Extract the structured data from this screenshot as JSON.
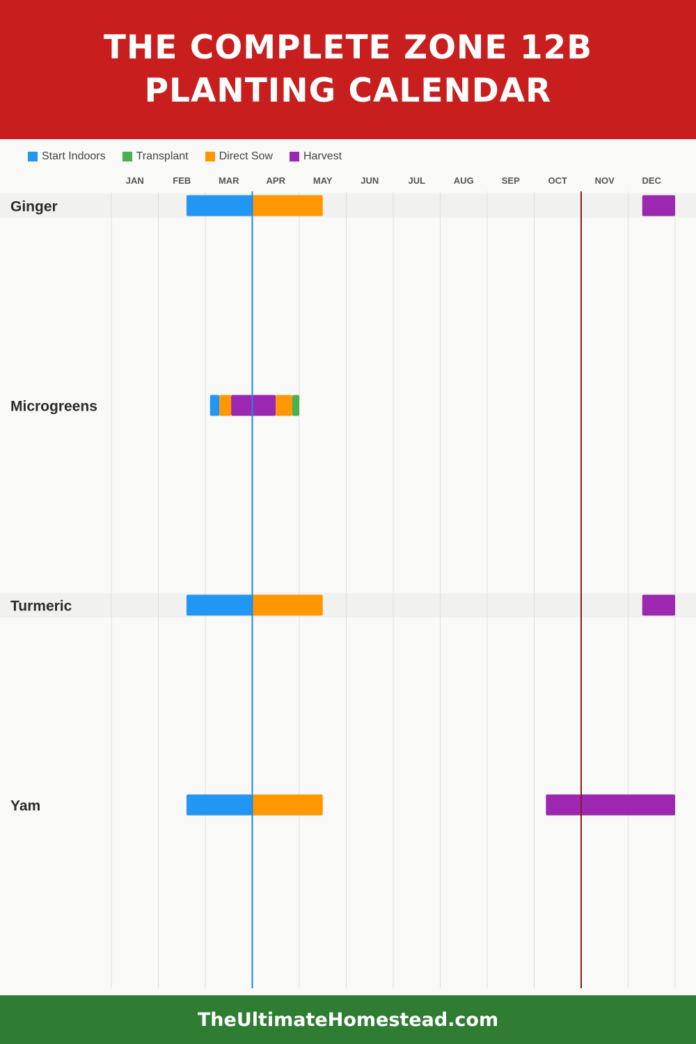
{
  "title": {
    "line1": "THE COMPLETE ZONE 12B",
    "line2": "PLANTING CALENDAR"
  },
  "legend": [
    {
      "label": "Start Indoors",
      "color": "#2196f3"
    },
    {
      "label": "Transplant",
      "color": "#4caf50"
    },
    {
      "label": "Direct Sow",
      "color": "#ff9800"
    },
    {
      "label": "Harvest",
      "color": "#9c27b0"
    }
  ],
  "footer": {
    "text": "TheUltimateHomestead.com"
  },
  "chart_data": {
    "type": "gantt",
    "months": [
      "JAN",
      "FEB",
      "MAR",
      "APR",
      "MAY",
      "JUN",
      "JUL",
      "AUG",
      "SEP",
      "OCT",
      "NOV",
      "DEC"
    ],
    "markers": [
      {
        "month_pos": 3.0,
        "color": "#1e88e5"
      },
      {
        "month_pos": 10.0,
        "color": "#8b1a1a"
      }
    ],
    "crops": [
      {
        "name": "Ginger",
        "tasks": [
          {
            "type": "Start Indoors",
            "start": 1.6,
            "end": 3.0
          },
          {
            "type": "Direct Sow",
            "start": 3.0,
            "end": 4.5
          },
          {
            "type": "Harvest",
            "start": 11.3,
            "end": 12.0
          }
        ]
      },
      {
        "name": "Microgreens",
        "tasks": [
          {
            "type": "Start Indoors",
            "start": 2.1,
            "end": 2.3
          },
          {
            "type": "Direct Sow",
            "start": 2.3,
            "end": 2.55
          },
          {
            "type": "Harvest",
            "start": 2.55,
            "end": 3.5
          },
          {
            "type": "Direct Sow",
            "start": 3.5,
            "end": 3.85
          },
          {
            "type": "Transplant",
            "start": 3.85,
            "end": 4.0
          }
        ]
      },
      {
        "name": "Turmeric",
        "tasks": [
          {
            "type": "Start Indoors",
            "start": 1.6,
            "end": 3.0
          },
          {
            "type": "Direct Sow",
            "start": 3.0,
            "end": 4.5
          },
          {
            "type": "Harvest",
            "start": 11.3,
            "end": 12.0
          }
        ]
      },
      {
        "name": "Yam",
        "tasks": [
          {
            "type": "Start Indoors",
            "start": 1.6,
            "end": 3.0
          },
          {
            "type": "Direct Sow",
            "start": 3.0,
            "end": 4.5
          },
          {
            "type": "Harvest",
            "start": 9.25,
            "end": 12.0
          }
        ]
      }
    ]
  }
}
